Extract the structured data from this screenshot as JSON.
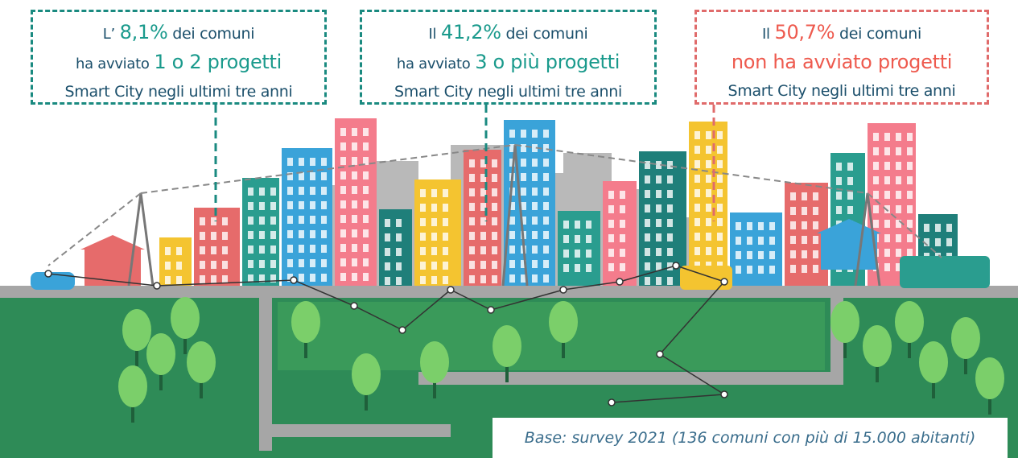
{
  "callouts": [
    {
      "intro": "L’",
      "percent": "8,1%",
      "rest": "dei comuni",
      "action_lead": "ha avviato",
      "action": "1 o 2 progetti",
      "tail": "Smart City negli ultimi tre anni"
    },
    {
      "intro": "Il",
      "percent": "41,2%",
      "rest": "dei comuni",
      "action_lead": "ha avviato",
      "action": "3 o più progetti",
      "tail": "Smart City negli ultimi tre anni"
    },
    {
      "intro": "Il",
      "percent": "50,7%",
      "rest": "dei comuni",
      "action": "non ha avviato progetti",
      "tail": "Smart City negli ultimi tre anni"
    }
  ],
  "footer": "Base: survey 2021 (136 comuni con più di 15.000 abitanti)"
}
